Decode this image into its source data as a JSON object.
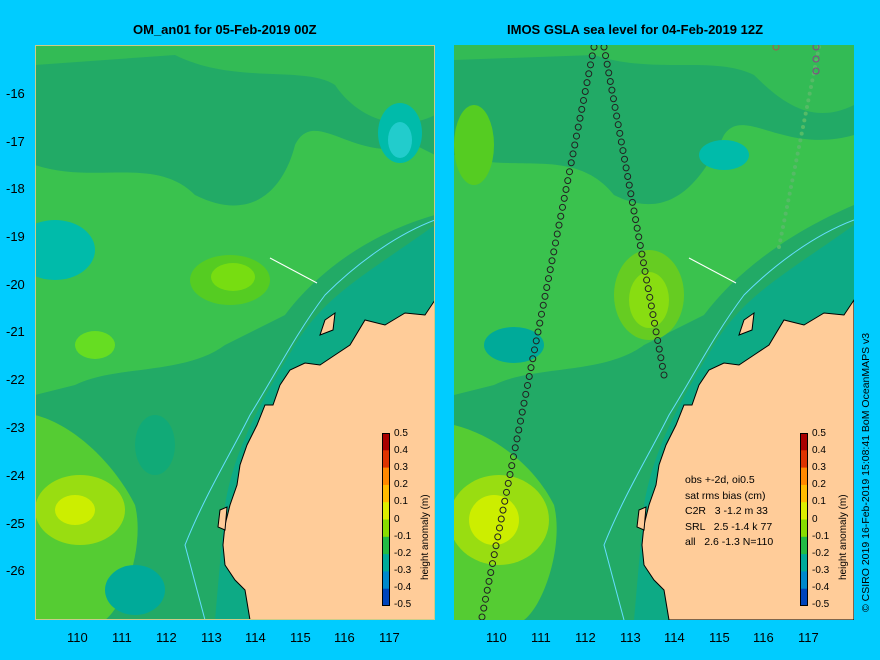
{
  "left_panel": {
    "title": "OM_an01 for 05-Feb-2019 00Z"
  },
  "right_panel": {
    "title": "IMOS GSLA sea level  for 04-Feb-2019 12Z"
  },
  "y_ticks": [
    "-16",
    "-17",
    "-18",
    "-19",
    "-20",
    "-21",
    "-22",
    "-23",
    "-24",
    "-25",
    "-26"
  ],
  "x_ticks": [
    "110",
    "111",
    "112",
    "113",
    "114",
    "115",
    "116",
    "117"
  ],
  "colorbar": {
    "title": "height anomaly (m)",
    "labels": [
      "0.5",
      "0.4",
      "0.3",
      "0.2",
      "0.1",
      "0",
      "-0.1",
      "-0.2",
      "-0.3",
      "-0.4",
      "-0.5"
    ],
    "colors": [
      "#aa0000",
      "#dd3300",
      "#ff8800",
      "#ffbb00",
      "#ddee00",
      "#88dd00",
      "#22bb44",
      "#00aa99",
      "#0088cc",
      "#0044bb",
      "#000088"
    ]
  },
  "stats": {
    "line1": "obs +-2d, oi0.5",
    "line2": "sat rms bias (cm)",
    "line3": "C2R   3 -1.2 m 33",
    "line4": "SRL   2.5 -1.4 k 77",
    "line5": "all   2.6 -1.3 N=110"
  },
  "credit": "© CSIRO 2019  16-Feb-2019 15:08:41 BoM OceanMAPS v3",
  "colors": {
    "background": "#00ccff",
    "land": "#ffcc99",
    "water_base": "#22aa66"
  }
}
